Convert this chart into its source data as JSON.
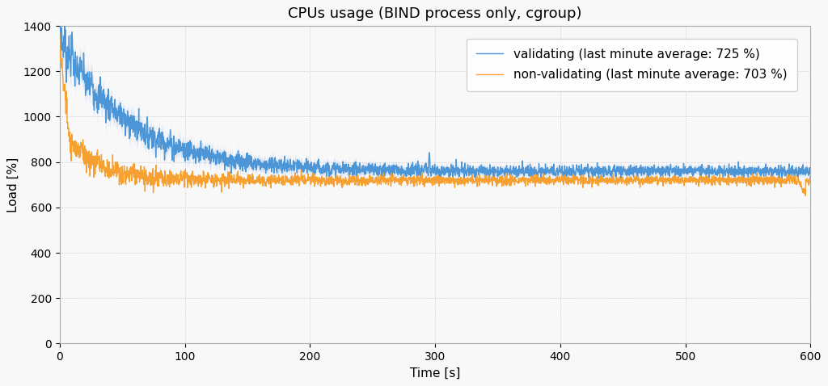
{
  "title": "CPUs usage (BIND process only, cgroup)",
  "xlabel": "Time [s]",
  "ylabel": "Load [%]",
  "xlim": [
    0,
    600
  ],
  "ylim": [
    0,
    1400
  ],
  "yticks": [
    0,
    200,
    400,
    600,
    800,
    1000,
    1200,
    1400
  ],
  "xticks": [
    0,
    100,
    200,
    300,
    400,
    500,
    600
  ],
  "blue_color": "#4c96d7",
  "blue_fill_color": "#a8c8f0",
  "orange_color": "#f5a030",
  "bg_color": "#f8f8f8",
  "grid_color": "#c8c8d0",
  "blue_label": "validating (last minute average: 725 %)",
  "orange_label": "non-validating (last minute average: 703 %)",
  "title_fontsize": 13,
  "label_fontsize": 11,
  "tick_fontsize": 10,
  "legend_fontsize": 11,
  "seed": 7
}
